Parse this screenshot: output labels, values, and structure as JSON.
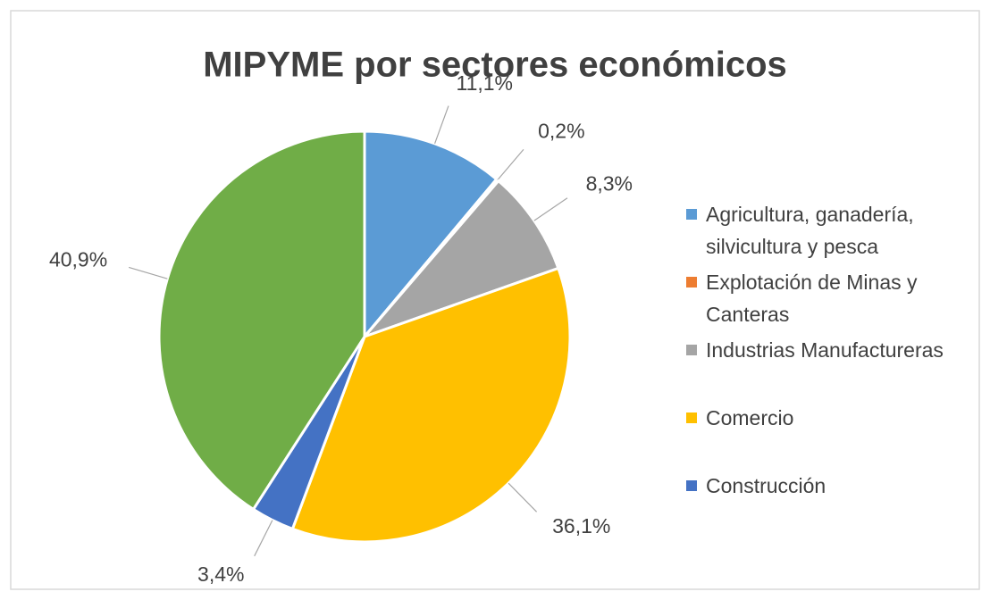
{
  "chart_data": {
    "type": "pie",
    "title": "MIPYME por sectores económicos",
    "categories": [
      "Agricultura, ganadería, silvicultura y pesca",
      "Explotación de Minas y Canteras",
      "Industrias Manufactureras",
      "Comercio",
      "Construcción",
      null
    ],
    "values": [
      11.1,
      0.2,
      8.3,
      36.1,
      3.4,
      40.9
    ],
    "value_labels": [
      "11,1%",
      "0,2%",
      "8,3%",
      "36,1%",
      "3,4%",
      "40,9%"
    ],
    "colors": [
      "#5b9bd5",
      "#ed7d31",
      "#a5a5a5",
      "#ffc000",
      "#4472c4",
      "#70ad47"
    ],
    "legend": "right"
  }
}
